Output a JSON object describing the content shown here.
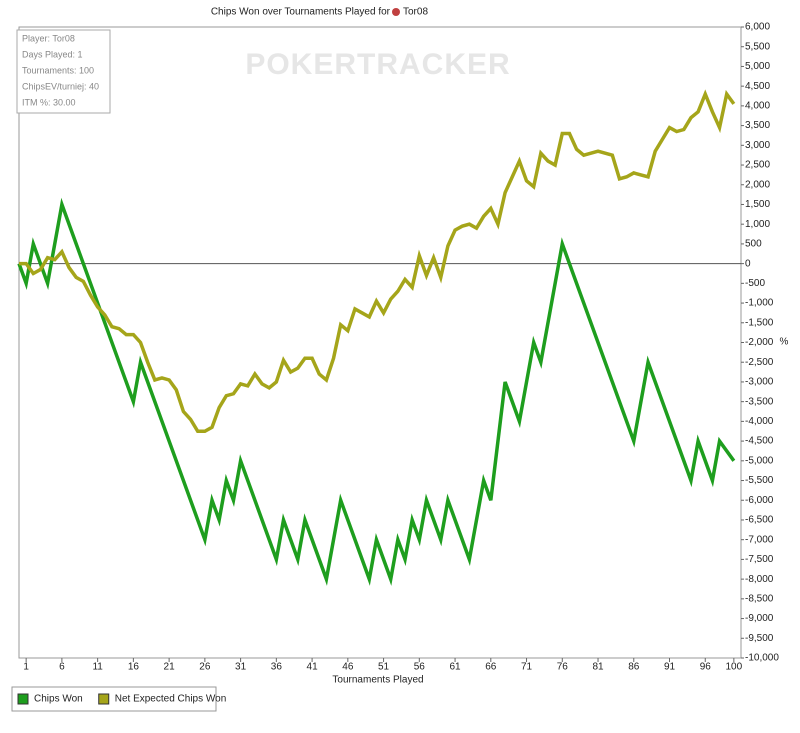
{
  "chart_data": {
    "type": "line",
    "title": "Chips Won over Tournaments Played for",
    "title_player": "Tor08",
    "watermark": "POKERTRACKER",
    "info": [
      "Player: Tor08",
      "Days Played: 1",
      "Tournaments: 100",
      "ChipsEV/turniej: 40",
      "ITM %: 30.00"
    ],
    "x_label": "Tournaments Played",
    "y_label": "%",
    "xlim": [
      0,
      101
    ],
    "xticks": [
      1,
      6,
      11,
      16,
      21,
      26,
      31,
      36,
      41,
      46,
      51,
      56,
      61,
      66,
      71,
      76,
      81,
      86,
      91,
      96,
      100
    ],
    "ylim": [
      -10000,
      6000
    ],
    "yticks": [
      {
        "value": 6000,
        "label": "6,000"
      },
      {
        "value": 5500,
        "label": "5,500"
      },
      {
        "value": 5000,
        "label": "5,000"
      },
      {
        "value": 4500,
        "label": "4,500"
      },
      {
        "value": 4000,
        "label": "4,000"
      },
      {
        "value": 3500,
        "label": "3,500"
      },
      {
        "value": 3000,
        "label": "3,000"
      },
      {
        "value": 2500,
        "label": "2,500"
      },
      {
        "value": 2000,
        "label": "2,000"
      },
      {
        "value": 1500,
        "label": "1,500"
      },
      {
        "value": 1000,
        "label": "1,000"
      },
      500,
      0,
      -500,
      {
        "value": -1000,
        "label": "-1,000"
      },
      {
        "value": -1500,
        "label": "-1,500"
      },
      {
        "value": -2000,
        "label": "-2,000"
      },
      {
        "value": -2500,
        "label": "-2,500"
      },
      {
        "value": -3000,
        "label": "-3,000"
      },
      {
        "value": -3500,
        "label": "-3,500"
      },
      {
        "value": -4000,
        "label": "-4,000"
      },
      {
        "value": -4500,
        "label": "-4,500"
      },
      {
        "value": -5000,
        "label": "-5,000"
      },
      {
        "value": -5500,
        "label": "-5,500"
      },
      {
        "value": -6000,
        "label": "-6,000"
      },
      {
        "value": -6500,
        "label": "-6,500"
      },
      {
        "value": -7000,
        "label": "-7,000"
      },
      {
        "value": -7500,
        "label": "-7,500"
      },
      {
        "value": -8000,
        "label": "-8,000"
      },
      {
        "value": -8500,
        "label": "-8,500"
      },
      {
        "value": -9000,
        "label": "-9,000"
      },
      {
        "value": -9500,
        "label": "-9,500"
      },
      {
        "value": -10000,
        "label": "-10,000"
      }
    ],
    "series": [
      {
        "name": "Chips Won",
        "color": "#1e9e1e",
        "x": [
          0,
          1,
          2,
          4,
          6,
          16,
          17,
          26,
          27,
          28,
          29,
          30,
          31,
          36,
          37,
          39,
          40,
          43,
          45,
          49,
          50,
          52,
          53,
          54,
          55,
          56,
          57,
          59,
          60,
          63,
          65,
          66,
          68,
          70,
          72,
          73,
          76,
          86,
          88,
          94,
          95,
          97,
          98,
          100
        ],
        "values": [
          0,
          -500,
          500,
          -500,
          1500,
          -3500,
          -2500,
          -7000,
          -6000,
          -6500,
          -5500,
          -6000,
          -5000,
          -7500,
          -6500,
          -7500,
          -6500,
          -8000,
          -6000,
          -8000,
          -7000,
          -8000,
          -7000,
          -7500,
          -6500,
          -7000,
          -6000,
          -7000,
          -6000,
          -7500,
          -5500,
          -6000,
          -3000,
          -4000,
          -2000,
          -2500,
          500,
          -4500,
          -2500,
          -5500,
          -4500,
          -5500,
          -4500,
          -5000
        ]
      },
      {
        "name": "Net Expected Chips Won",
        "color": "#a5a51a",
        "x": [
          0,
          1,
          2,
          3,
          4,
          5,
          6,
          7,
          8,
          9,
          10,
          11,
          12,
          13,
          14,
          15,
          16,
          17,
          18,
          19,
          20,
          21,
          22,
          23,
          24,
          25,
          26,
          27,
          28,
          29,
          30,
          31,
          32,
          33,
          34,
          35,
          36,
          37,
          38,
          39,
          40,
          41,
          42,
          43,
          44,
          45,
          46,
          47,
          48,
          49,
          50,
          51,
          52,
          53,
          54,
          55,
          56,
          57,
          58,
          59,
          60,
          61,
          62,
          63,
          64,
          65,
          66,
          67,
          68,
          69,
          70,
          71,
          72,
          73,
          74,
          75,
          76,
          77,
          78,
          79,
          80,
          81,
          82,
          83,
          84,
          85,
          86,
          87,
          88,
          89,
          90,
          91,
          92,
          93,
          94,
          95,
          96,
          97,
          98,
          99,
          100
        ],
        "values": [
          0,
          0,
          -250,
          -150,
          150,
          100,
          300,
          -100,
          -350,
          -450,
          -800,
          -1100,
          -1300,
          -1600,
          -1650,
          -1800,
          -1800,
          -2000,
          -2500,
          -2950,
          -2900,
          -2950,
          -3200,
          -3750,
          -3950,
          -4250,
          -4250,
          -4150,
          -3650,
          -3350,
          -3300,
          -3050,
          -3100,
          -2800,
          -3050,
          -3150,
          -3000,
          -2450,
          -2750,
          -2650,
          -2400,
          -2400,
          -2800,
          -2950,
          -2400,
          -1550,
          -1700,
          -1150,
          -1250,
          -1350,
          -950,
          -1250,
          -900,
          -700,
          -400,
          -600,
          200,
          -300,
          150,
          -350,
          450,
          850,
          950,
          1000,
          900,
          1200,
          1400,
          1000,
          1800,
          2200,
          2600,
          2100,
          1950,
          2800,
          2600,
          2500,
          3300,
          3300,
          2900,
          2750,
          2800,
          2850,
          2800,
          2750,
          2150,
          2200,
          2300,
          2250,
          2200,
          2850,
          3150,
          3450,
          3350,
          3400,
          3700,
          3850,
          4300,
          3850,
          3450,
          4300,
          4050
        ]
      }
    ]
  }
}
